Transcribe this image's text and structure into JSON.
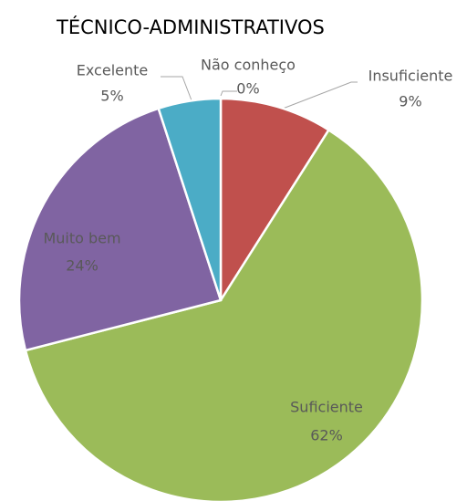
{
  "chart_data": {
    "type": "pie",
    "title": "TÉCNICO-ADMINISTRATIVOS",
    "categories": [
      "Não conheço",
      "Insuficiente",
      "Suficiente",
      "Muito bem",
      "Excelente"
    ],
    "values": [
      0,
      9,
      62,
      24,
      5
    ],
    "value_labels": [
      "0%",
      "9%",
      "62%",
      "24%",
      "5%"
    ],
    "colors": [
      "#f79646",
      "#c0504d",
      "#9bbb59",
      "#8064a2",
      "#4bacc6"
    ]
  }
}
